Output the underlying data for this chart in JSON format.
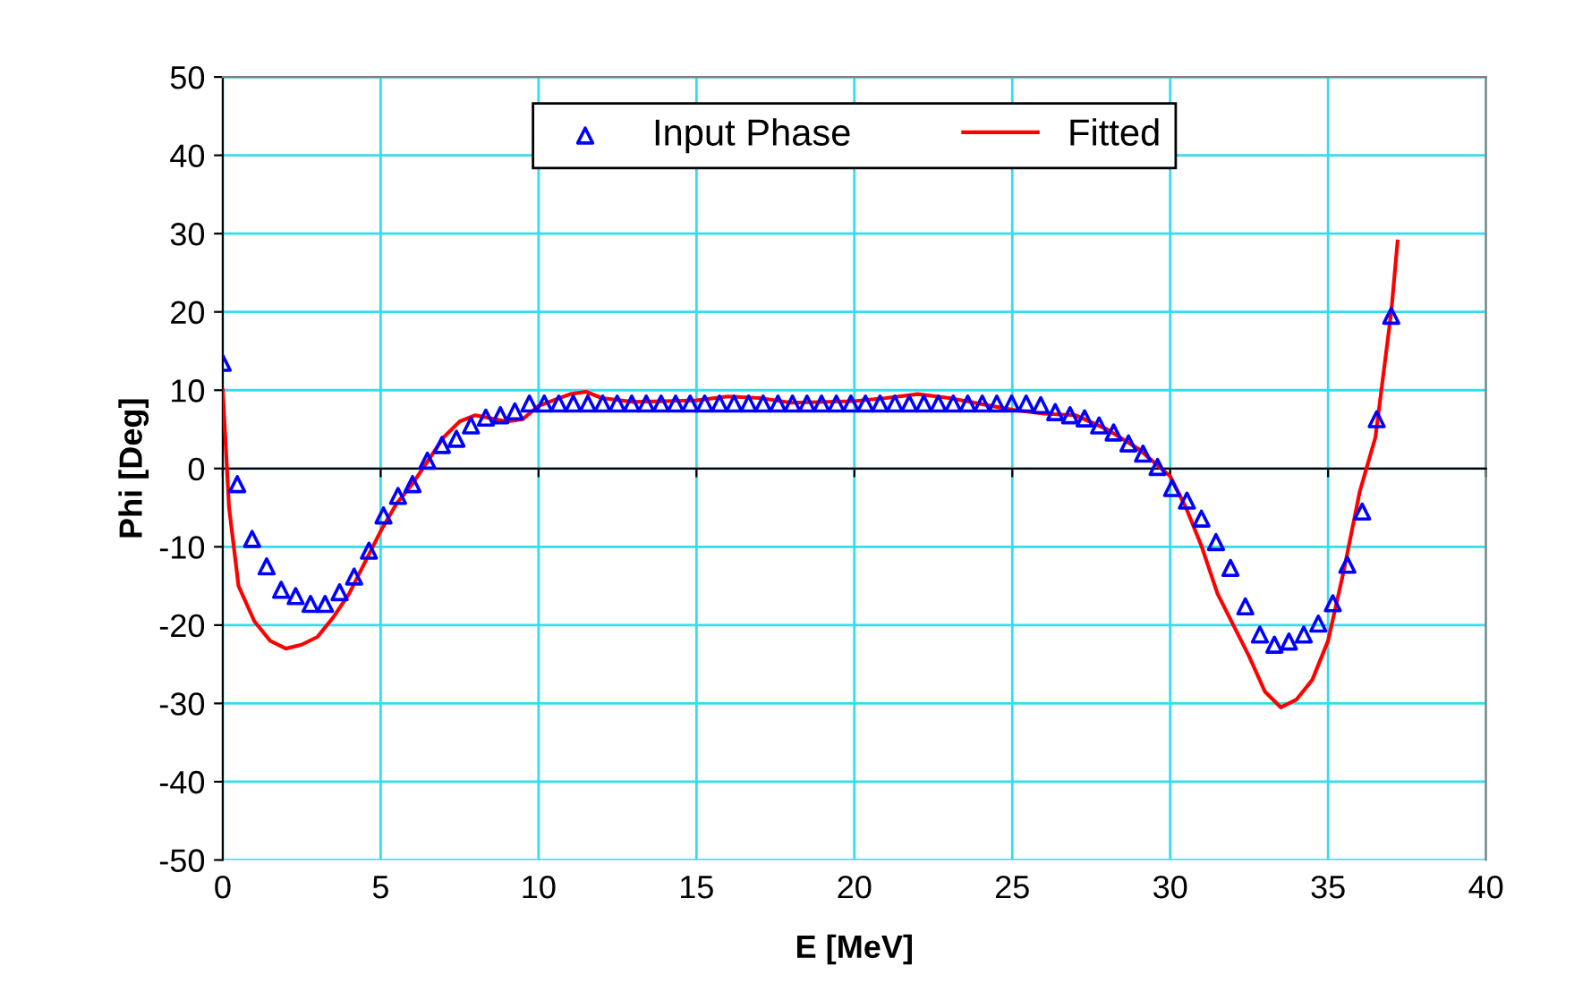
{
  "chart_data": {
    "type": "scatter",
    "xlabel": "E [MeV]",
    "ylabel": "Phi [Deg]",
    "xlim": [
      0,
      40
    ],
    "xticks": [
      0,
      5,
      10,
      15,
      20,
      25,
      30,
      35,
      40
    ],
    "ylim": [
      -50,
      50
    ],
    "yticks": [
      -50,
      -40,
      -30,
      -20,
      -10,
      0,
      10,
      20,
      30,
      40,
      50
    ],
    "grid": true,
    "legend": "top",
    "series": [
      {
        "name": "Input Phase",
        "type": "scatter",
        "color": "#0000ff",
        "marker": "triangle",
        "x": [
          0,
          0.46,
          0.93,
          1.39,
          1.85,
          2.31,
          2.78,
          3.24,
          3.7,
          4.16,
          4.63,
          5.09,
          5.55,
          6.01,
          6.48,
          6.94,
          7.4,
          7.86,
          8.33,
          8.79,
          9.25,
          9.71,
          10.18,
          10.64,
          11.1,
          11.56,
          12.03,
          12.49,
          12.95,
          13.41,
          13.88,
          14.34,
          14.8,
          15.26,
          15.73,
          16.19,
          16.65,
          17.11,
          17.58,
          18.04,
          18.5,
          18.96,
          19.43,
          19.89,
          20.35,
          20.81,
          21.28,
          21.74,
          22.2,
          22.66,
          23.13,
          23.59,
          24.05,
          24.51,
          24.98,
          25.44,
          25.9,
          26.36,
          26.83,
          27.29,
          27.75,
          28.21,
          28.68,
          29.14,
          29.6,
          30.06,
          30.53,
          30.99,
          31.45,
          31.91,
          32.38,
          32.84,
          33.3,
          33.76,
          34.23,
          34.69,
          35.15,
          35.61,
          36.08,
          36.54,
          37.0
        ],
        "values": [
          13.5,
          -2,
          -9,
          -12.5,
          -15.5,
          -16.3,
          -17.3,
          -17.3,
          -15.8,
          -13.8,
          -10.5,
          -6,
          -3.5,
          -2,
          1,
          3,
          3.8,
          5.5,
          6.5,
          6.8,
          7.3,
          8.3,
          8.3,
          8.3,
          8.3,
          8.3,
          8.3,
          8.3,
          8.3,
          8.3,
          8.3,
          8.3,
          8.3,
          8.3,
          8.3,
          8.3,
          8.3,
          8.3,
          8.3,
          8.3,
          8.3,
          8.3,
          8.3,
          8.3,
          8.3,
          8.3,
          8.3,
          8.3,
          8.3,
          8.3,
          8.3,
          8.3,
          8.3,
          8.3,
          8.3,
          8.3,
          8.1,
          7.2,
          6.8,
          6.4,
          5.5,
          4.6,
          3.2,
          1.9,
          0.2,
          -2.5,
          -4.1,
          -6.4,
          -9.4,
          -12.7,
          -17.6,
          -21.2,
          -22.5,
          -22.1,
          -21.2,
          -19.8,
          -17.2,
          -12.3,
          -5.5,
          6.3,
          19.5
        ]
      },
      {
        "name": "Fitted",
        "type": "line",
        "color": "#ff0000",
        "marker": "none",
        "line_style": "solid",
        "x": [
          0,
          0.2,
          0.5,
          1,
          1.5,
          2,
          2.5,
          3,
          3.5,
          4,
          4.5,
          5,
          5.5,
          6,
          6.5,
          7,
          7.5,
          8,
          9,
          9.5,
          10,
          11,
          11.5,
          12,
          13,
          15,
          16,
          17,
          18,
          20,
          21,
          22,
          23,
          25,
          26,
          27,
          28,
          29,
          30,
          30.5,
          31,
          31.5,
          32,
          32.5,
          33,
          33.5,
          34,
          34.5,
          35,
          35.5,
          36,
          36.5,
          37,
          37.2
        ],
        "values": [
          10,
          -5,
          -15,
          -19.5,
          -22,
          -23,
          -22.5,
          -21.5,
          -19,
          -16,
          -12,
          -8,
          -4.5,
          -2,
          1,
          4,
          6,
          6.8,
          6,
          6.3,
          8,
          9.5,
          9.8,
          9,
          8.5,
          8.7,
          9.2,
          9,
          8.4,
          8.6,
          9,
          9.5,
          9,
          7.5,
          7,
          6.8,
          5,
          2.5,
          -1,
          -5,
          -10,
          -16,
          -20,
          -24,
          -28.5,
          -30.5,
          -29.5,
          -27,
          -22,
          -13,
          -3,
          4,
          20,
          29
        ]
      }
    ]
  }
}
